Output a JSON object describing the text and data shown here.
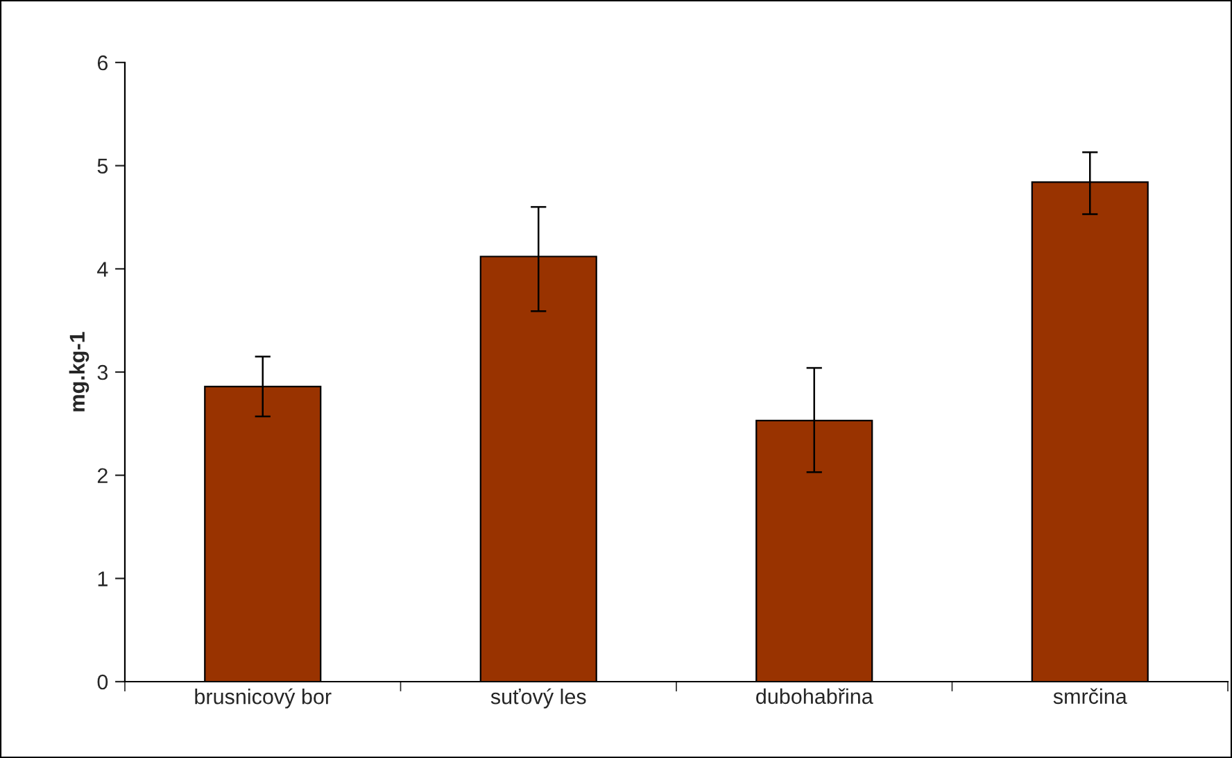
{
  "chart_data": {
    "type": "bar",
    "ylabel": "mg.kg-1",
    "categories": [
      "brusnicový bor",
      "suťový les",
      "dubohabřina",
      "smrčina"
    ],
    "values": [
      2.86,
      4.12,
      2.53,
      4.84
    ],
    "errors": [
      [
        2.57,
        3.15
      ],
      [
        3.59,
        4.6
      ],
      [
        2.03,
        3.04
      ],
      [
        4.53,
        5.13
      ]
    ],
    "color": "#993300",
    "ylim": [
      0,
      6
    ],
    "yticks": [
      0,
      1,
      2,
      3,
      4,
      5,
      6
    ],
    "grid": false,
    "legend": false
  }
}
